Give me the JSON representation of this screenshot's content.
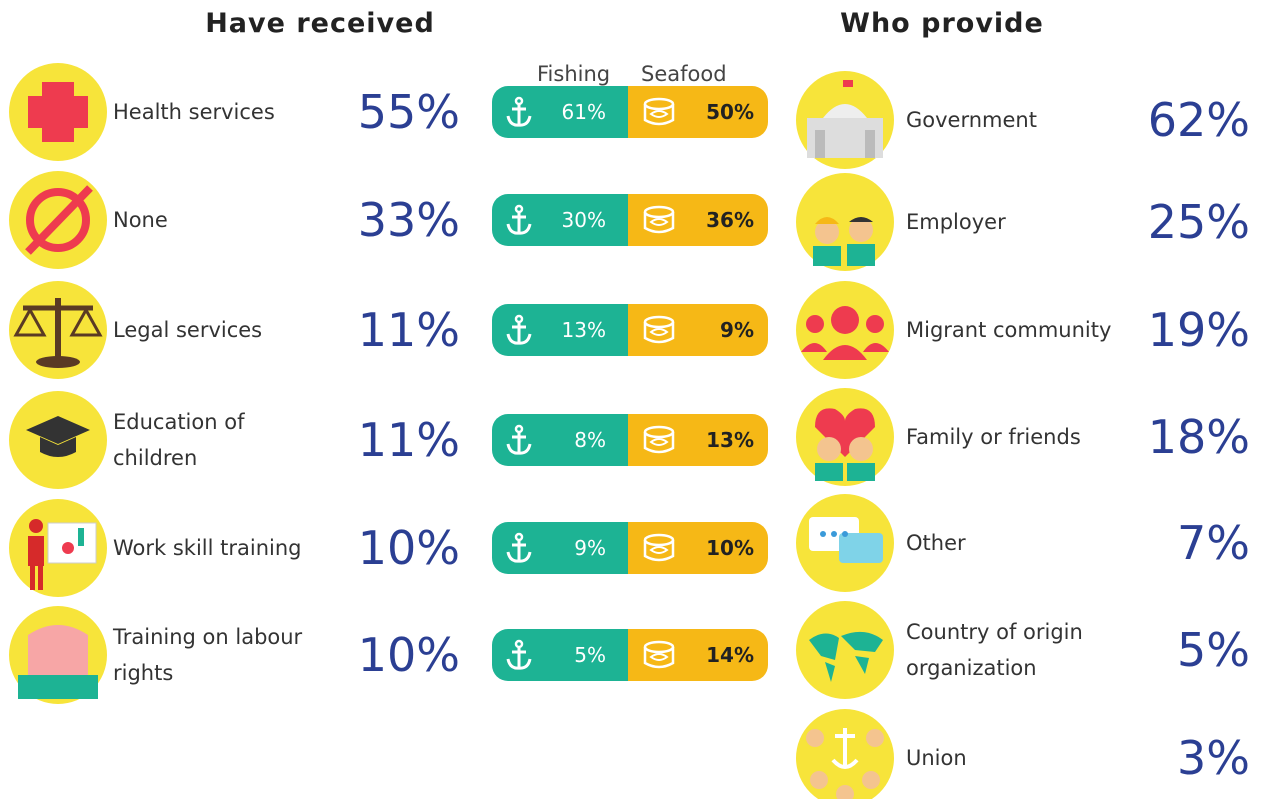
{
  "left": {
    "title": "Have received",
    "columns": [
      "Fishing",
      "Seafood"
    ],
    "rows": [
      {
        "label": "Health services",
        "total": "55%",
        "fishing": "61%",
        "seafood": "50%"
      },
      {
        "label": "None",
        "total": "33%",
        "fishing": "30%",
        "seafood": "36%"
      },
      {
        "label": "Legal services",
        "total": "11%",
        "fishing": "13%",
        "seafood": "9%"
      },
      {
        "label": "Education of children",
        "total": "11%",
        "fishing": "8%",
        "seafood": "13%"
      },
      {
        "label": "Work skill training",
        "total": "10%",
        "fishing": "9%",
        "seafood": "10%"
      },
      {
        "label": "Training on labour rights",
        "total": "10%",
        "fishing": "5%",
        "seafood": "14%"
      }
    ]
  },
  "right": {
    "title": "Who provide",
    "rows": [
      {
        "label": "Government",
        "value": "62%"
      },
      {
        "label": "Employer",
        "value": "25%"
      },
      {
        "label": "Migrant community",
        "value": "19%"
      },
      {
        "label": "Family or friends",
        "value": "18%"
      },
      {
        "label": "Other",
        "value": "7%"
      },
      {
        "label": "Country of origin organization",
        "value": "5%"
      },
      {
        "label": "Union",
        "value": "3%"
      }
    ]
  }
}
